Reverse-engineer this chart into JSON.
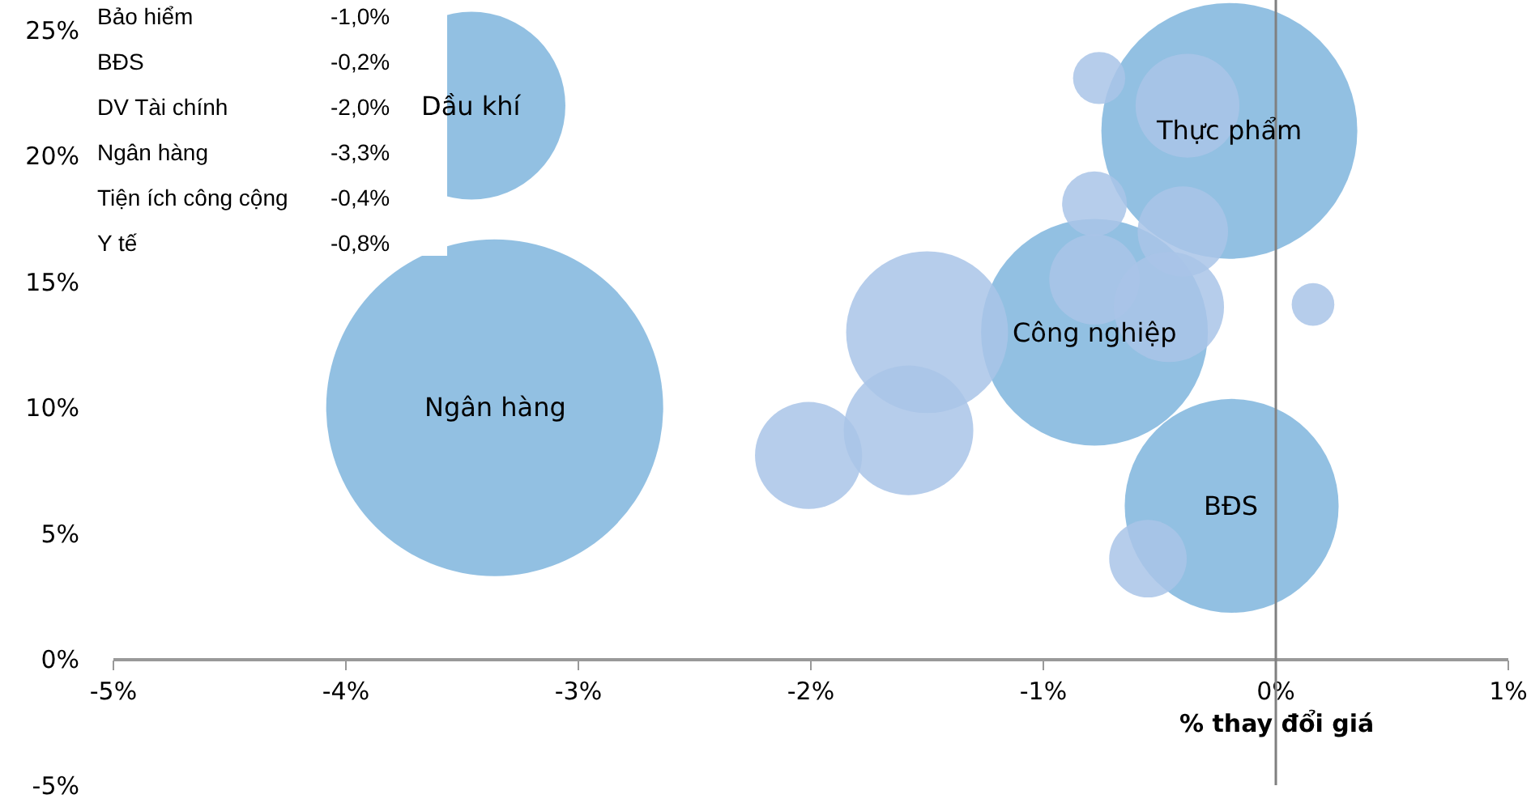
{
  "chart_data": {
    "type": "bubble",
    "xlabel": "% thay đổi giá",
    "xlim": [
      -5,
      1
    ],
    "xticks": [
      {
        "value": -5,
        "label": "-5%"
      },
      {
        "value": -4,
        "label": "-4%"
      },
      {
        "value": -3,
        "label": "-3%"
      },
      {
        "value": -2,
        "label": "-2%"
      },
      {
        "value": -1,
        "label": "-1%"
      },
      {
        "value": 0,
        "label": "0%"
      },
      {
        "value": 1,
        "label": "1%"
      }
    ],
    "ylim": [
      -5,
      26.2
    ],
    "yticks": [
      {
        "value": -5,
        "label": "-5%"
      },
      {
        "value": 0,
        "label": "0%"
      },
      {
        "value": 5,
        "label": "5%"
      },
      {
        "value": 10,
        "label": "10%"
      },
      {
        "value": 15,
        "label": "15%"
      },
      {
        "value": 20,
        "label": "20%"
      },
      {
        "value": 25,
        "label": "25%"
      }
    ],
    "series": [
      {
        "x": [
          -3.46,
          -3.36,
          -0.2,
          -0.78,
          -0.19
        ],
        "values": [
          22.0,
          10.0,
          21.0,
          13.0,
          6.1
        ],
        "sizes": [
          0.311,
          1,
          0.577,
          0.453,
          0.403
        ],
        "color": "#7fb5dd"
      },
      {
        "x": [
          -0.76,
          -0.38,
          -0.78,
          -0.4,
          -0.78,
          -0.46,
          0.16,
          -1.5,
          -1.58,
          -2.01,
          -0.55
        ],
        "values": [
          23.1,
          22.0,
          18.1,
          17.0,
          15.1,
          14.0,
          14.1,
          13.0,
          9.1,
          8.1,
          4.0
        ],
        "sizes": [
          0.024,
          0.095,
          0.037,
          0.072,
          0.072,
          0.107,
          0.016,
          0.231,
          0.148,
          0.101,
          0.053
        ],
        "color": "#a9c4e8"
      }
    ],
    "ref_lines": [
      {
        "axis": "x",
        "value": 0,
        "label": null,
        "color": "#808080"
      }
    ],
    "annotations": [
      {
        "text": "Dầu khí",
        "x": -3.46,
        "y": 22.0
      },
      {
        "text": "Ngân hàng",
        "x": -3.36,
        "y": 10.0
      },
      {
        "text": "Thực phẩm",
        "x": -0.2,
        "y": 21.0
      },
      {
        "text": "Công nghiệp",
        "x": -0.78,
        "y": 13.0
      },
      {
        "text": "BĐS",
        "x": -0.19,
        "y": 6.1
      },
      "Bảo hiểm",
      "-1,0%",
      "BĐS",
      "-0,2%",
      "DV Tài chính",
      "-2,0%",
      "Ngân hàng",
      "-3,3%",
      "Tiện ích công cộng",
      "-0,4%",
      "Y tế",
      "-0,8%"
    ]
  }
}
